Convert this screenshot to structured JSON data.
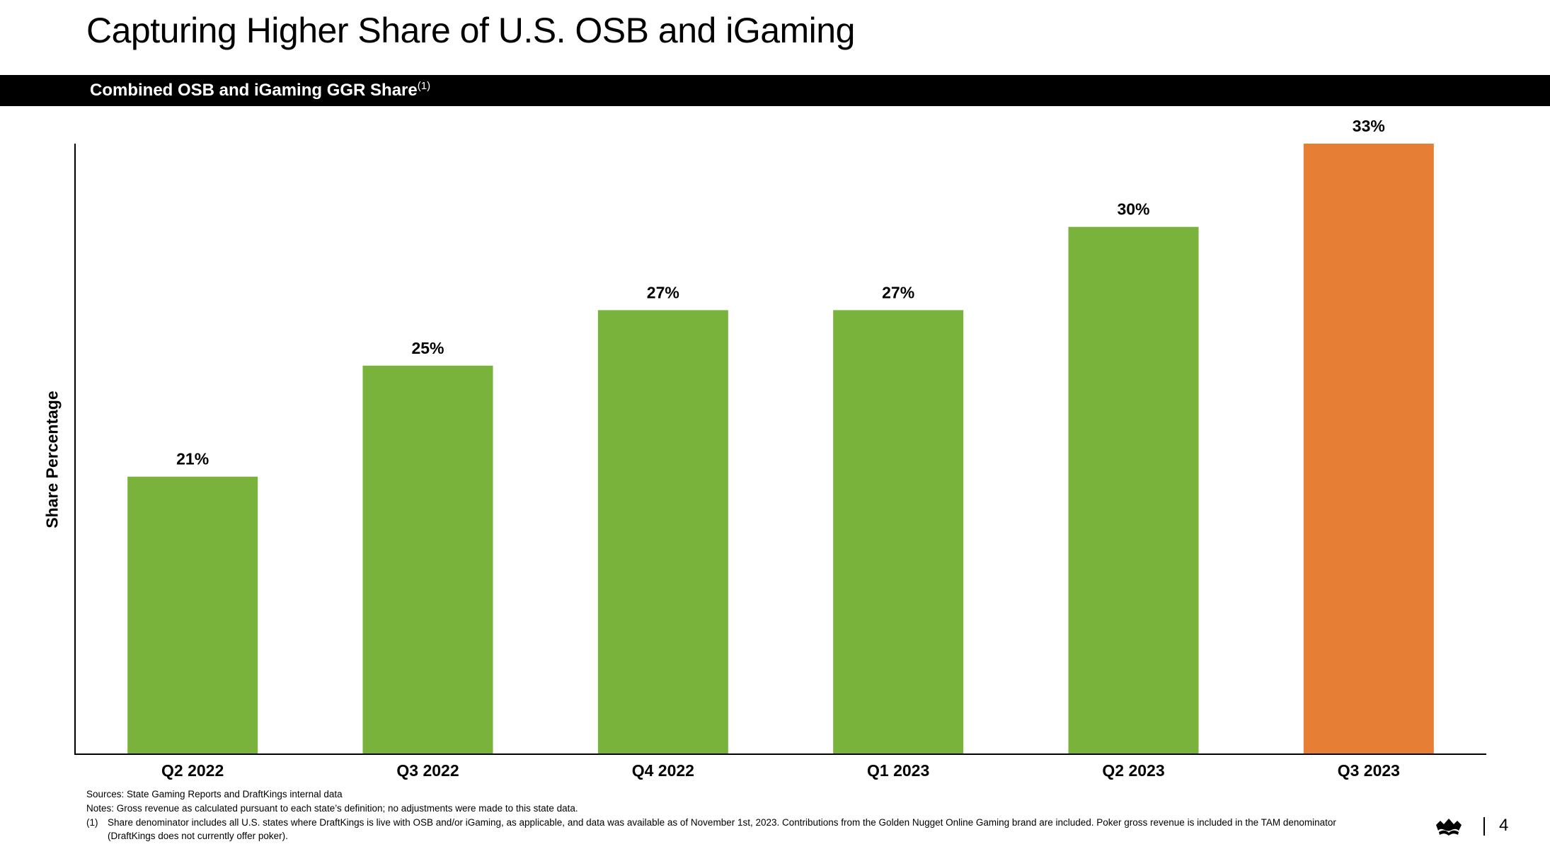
{
  "page": {
    "title": "Capturing Higher Share of U.S. OSB and iGaming",
    "banner_title": "Combined OSB and iGaming GGR Share",
    "banner_footnote_mark": "(1)",
    "page_number": "4",
    "logo_icon": "crown-logo-icon"
  },
  "chart_data": {
    "type": "bar",
    "title": "Combined OSB and iGaming GGR Share",
    "xlabel": "",
    "ylabel": "Share Percentage",
    "categories": [
      "Q2 2022",
      "Q3 2022",
      "Q4 2022",
      "Q1 2023",
      "Q2 2023",
      "Q3 2023"
    ],
    "values": [
      21,
      25,
      27,
      27,
      30,
      33
    ],
    "value_labels": [
      "21%",
      "25%",
      "27%",
      "27%",
      "30%",
      "33%"
    ],
    "bar_colors": [
      "#7ab33b",
      "#7ab33b",
      "#7ab33b",
      "#7ab33b",
      "#7ab33b",
      "#e67f35"
    ],
    "ylim": [
      11,
      33
    ],
    "grid": false,
    "legend": "none"
  },
  "notes": {
    "sources": "Sources: State Gaming Reports and DraftKings internal data",
    "notes": "Notes: Gross revenue as calculated pursuant to each state’s definition; no adjustments were made to this state data.",
    "footnote_mark": "(1)",
    "footnote": "Share denominator includes all U.S. states where DraftKings is live with OSB and/or iGaming, as applicable, and data was available as of November 1st, 2023. Contributions from the Golden Nugget Online Gaming brand are included. Poker gross revenue is included in the TAM denominator (DraftKings does not currently offer poker)."
  }
}
